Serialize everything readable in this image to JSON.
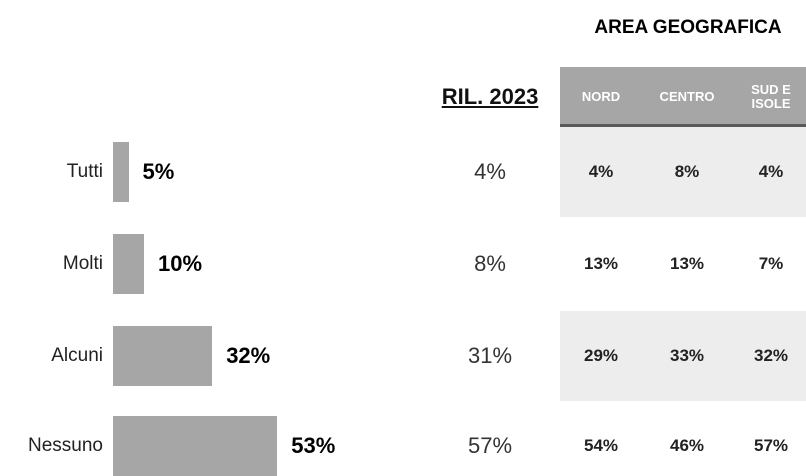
{
  "chart_data": {
    "type": "bar",
    "orientation": "horizontal",
    "categories": [
      "Tutti",
      "Molti",
      "Alcuni",
      "Nessuno"
    ],
    "values": [
      5,
      10,
      32,
      53
    ],
    "value_labels": [
      "5%",
      "10%",
      "32%",
      "53%"
    ],
    "color": "#a6a6a6"
  },
  "table": {
    "group_header": "AREA GEOGRAFICA",
    "columns": [
      "RIL. 2023",
      "NORD",
      "CENTRO",
      "SUD E ISOLE"
    ],
    "rows": [
      [
        "4%",
        "4%",
        "8%",
        "4%"
      ],
      [
        "8%",
        "13%",
        "13%",
        "7%"
      ],
      [
        "31%",
        "29%",
        "33%",
        "32%"
      ],
      [
        "57%",
        "54%",
        "46%",
        "57%"
      ]
    ],
    "shaded_rows": [
      0,
      2
    ]
  }
}
